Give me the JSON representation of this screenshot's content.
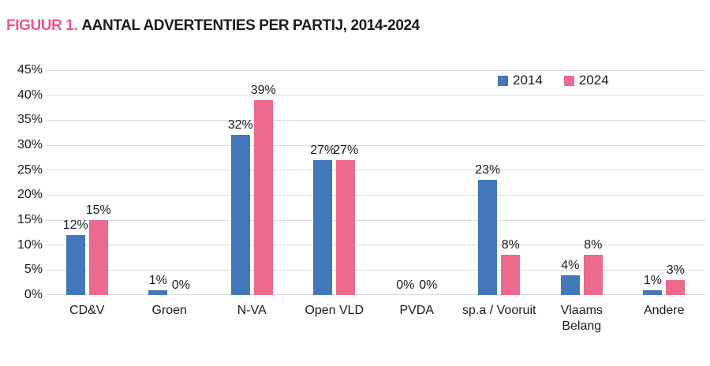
{
  "title": {
    "prefix": "FIGUUR 1.",
    "text": "AANTAL ADVERTENTIES PER PARTIJ, 2014-2024"
  },
  "colors": {
    "series_2014": "#4478bd",
    "series_2024": "#eb6a8d",
    "title_prefix": "#f2538a",
    "gridline": "#dbdbdb",
    "text": "#1b1b1b"
  },
  "chart_data": {
    "type": "bar",
    "title": "AANTAL ADVERTENTIES PER PARTIJ, 2014-2024",
    "categories": [
      "CD&V",
      "Groen",
      "N-VA",
      "Open VLD",
      "PVDA",
      "sp.a / Vooruit",
      "Vlaams Belang",
      "Andere"
    ],
    "series": [
      {
        "name": "2014",
        "color": "#4478bd",
        "values": [
          12,
          1,
          32,
          27,
          0,
          23,
          4,
          1
        ]
      },
      {
        "name": "2024",
        "color": "#eb6a8d",
        "values": [
          15,
          0,
          39,
          27,
          0,
          8,
          8,
          3
        ]
      }
    ],
    "data_labels": [
      "12%",
      "1%",
      "32%",
      "27%",
      "0%",
      "23%",
      "4%",
      "1%",
      "15%",
      "0%",
      "39%",
      "27%",
      "0%",
      "8%",
      "8%",
      "3%"
    ],
    "value_suffix": "%",
    "ylim": [
      0,
      45
    ],
    "ytick_step": 5,
    "yticks": [
      "0%",
      "5%",
      "10%",
      "15%",
      "20%",
      "25%",
      "30%",
      "35%",
      "40%",
      "45%"
    ],
    "grid": true,
    "legend_position": "top-right",
    "legend": [
      "2014",
      "2024"
    ]
  }
}
